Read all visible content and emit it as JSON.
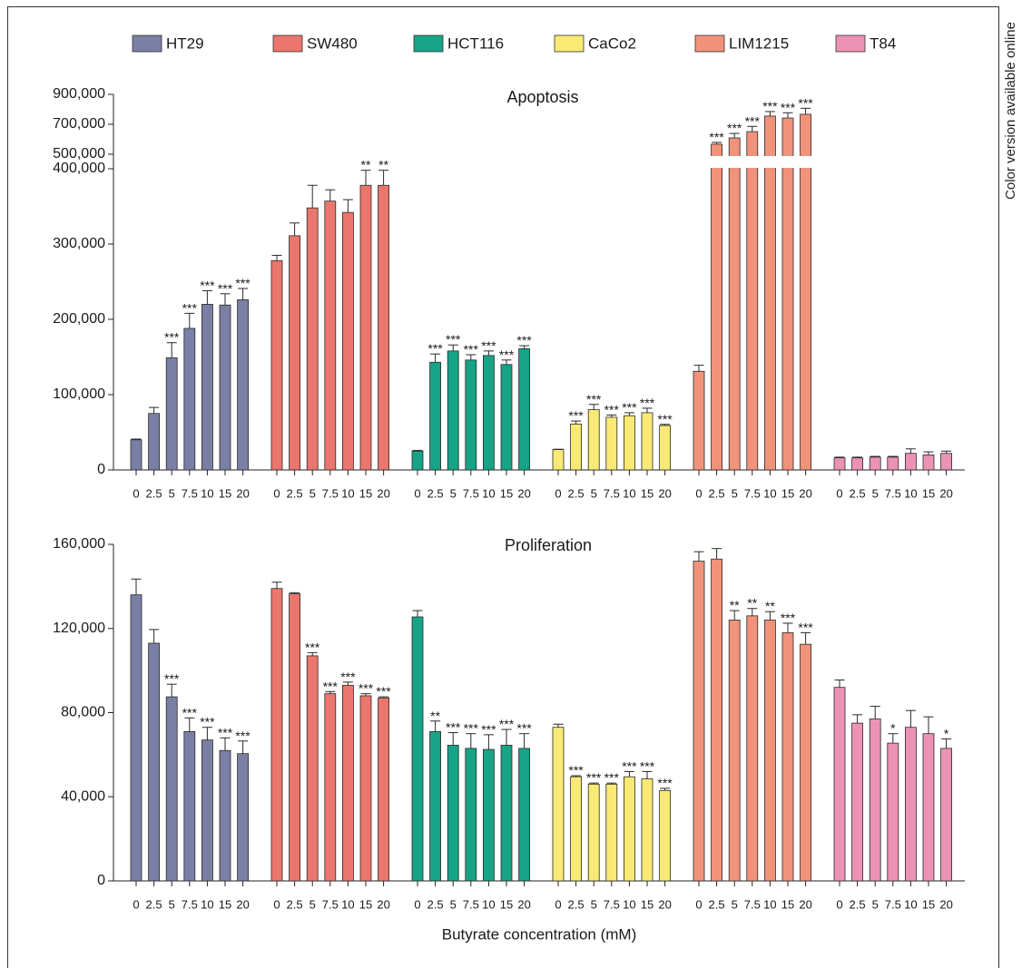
{
  "side_note": "Color version available online",
  "chart_data": [
    {
      "type": "bar",
      "title": "Apoptosis",
      "legend_position": "top",
      "grid": false,
      "categories": [
        "0",
        "2.5",
        "5",
        "7.5",
        "10",
        "15",
        "20"
      ],
      "ylim": [
        0,
        900000
      ],
      "axis_break": [
        400000,
        500000
      ],
      "yticks": [
        "0",
        "100,000",
        "200,000",
        "300,000",
        "400,000",
        "500,000",
        "700,000",
        "900,000"
      ],
      "series": [
        {
          "name": "HT29",
          "color": "#7a7fa5",
          "values": [
            40000,
            75000,
            149000,
            188000,
            220000,
            219000,
            226000
          ],
          "errors": [
            1000,
            8000,
            20000,
            20000,
            18000,
            15000,
            15000
          ],
          "significance": [
            "",
            "",
            "***",
            "***",
            "***",
            "***",
            "***"
          ]
        },
        {
          "name": "SW480",
          "color": "#ea766d",
          "values": [
            278000,
            311000,
            348000,
            357000,
            342000,
            378000,
            378000
          ],
          "errors": [
            7000,
            17000,
            30000,
            15000,
            17000,
            20000,
            20000
          ],
          "significance": [
            "",
            "",
            "",
            "",
            "",
            "**",
            "**"
          ]
        },
        {
          "name": "HCT116",
          "color": "#17a386",
          "values": [
            25000,
            143000,
            158000,
            146000,
            152000,
            140000,
            161000
          ],
          "errors": [
            1000,
            11000,
            8000,
            7000,
            6000,
            6000,
            4000
          ],
          "significance": [
            "",
            "***",
            "***",
            "***",
            "***",
            "***",
            "***"
          ]
        },
        {
          "name": "CaCo2",
          "color": "#f8ea74",
          "values": [
            27000,
            61000,
            80000,
            70000,
            72000,
            76000,
            59000
          ],
          "errors": [
            500,
            4000,
            7000,
            3000,
            4000,
            6000,
            1500
          ],
          "significance": [
            "",
            "***",
            "***",
            "***",
            "***",
            "***",
            "***"
          ]
        },
        {
          "name": "LIM1215",
          "color": "#f1927a",
          "values": [
            131000,
            567000,
            609000,
            651000,
            755000,
            742000,
            767000
          ],
          "errors": [
            8000,
            12000,
            30000,
            35000,
            30000,
            35000,
            40000
          ],
          "significance": [
            "",
            "***",
            "***",
            "***",
            "***",
            "***",
            "***"
          ]
        },
        {
          "name": "T84",
          "color": "#ec92b4",
          "values": [
            16000,
            16000,
            17000,
            17000,
            22000,
            20000,
            22000
          ],
          "errors": [
            1000,
            1000,
            1000,
            1000,
            6000,
            4000,
            3000
          ],
          "significance": [
            "",
            "",
            "",
            "",
            "",
            "",
            ""
          ]
        }
      ]
    },
    {
      "type": "bar",
      "title": "Proliferation",
      "xlabel": "Butyrate concentration (mM)",
      "grid": false,
      "categories": [
        "0",
        "2.5",
        "5",
        "7.5",
        "10",
        "15",
        "20"
      ],
      "ylim": [
        0,
        160000
      ],
      "yticks": [
        "0",
        "40,000",
        "80,000",
        "120,000",
        "160,000"
      ],
      "series": [
        {
          "name": "HT29",
          "color": "#7a7fa5",
          "values": [
            136000,
            113000,
            87500,
            71000,
            67000,
            62000,
            60500
          ],
          "errors": [
            7500,
            6500,
            6000,
            6500,
            6000,
            6000,
            6000
          ],
          "significance": [
            "",
            "",
            "***",
            "***",
            "***",
            "***",
            "***"
          ]
        },
        {
          "name": "SW480",
          "color": "#ea766d",
          "values": [
            139000,
            136500,
            107000,
            89000,
            93000,
            88000,
            87000
          ],
          "errors": [
            3000,
            500,
            1500,
            1000,
            1500,
            1000,
            500
          ],
          "significance": [
            "",
            "",
            "***",
            "***",
            "***",
            "***",
            "***"
          ]
        },
        {
          "name": "HCT116",
          "color": "#17a386",
          "values": [
            125500,
            71000,
            64500,
            63000,
            62500,
            64500,
            63000
          ],
          "errors": [
            3000,
            5000,
            6000,
            7000,
            7000,
            7500,
            7000
          ],
          "significance": [
            "",
            "**",
            "***",
            "***",
            "***",
            "***",
            "***"
          ]
        },
        {
          "name": "CaCo2",
          "color": "#f8ea74",
          "values": [
            73000,
            49500,
            46000,
            46000,
            49500,
            48500,
            43000
          ],
          "errors": [
            1500,
            500,
            500,
            500,
            2500,
            3500,
            1000
          ],
          "significance": [
            "",
            "***",
            "***",
            "***",
            "***",
            "***",
            "***"
          ]
        },
        {
          "name": "LIM1215",
          "color": "#f1927a",
          "values": [
            152000,
            153000,
            124000,
            126000,
            124000,
            118000,
            112500
          ],
          "errors": [
            4500,
            5000,
            4500,
            3500,
            4000,
            4500,
            5500
          ],
          "significance": [
            "",
            "",
            "**",
            "**",
            "**",
            "***",
            "***"
          ]
        },
        {
          "name": "T84",
          "color": "#ec92b4",
          "values": [
            92000,
            75000,
            77000,
            65500,
            73000,
            70000,
            63000
          ],
          "errors": [
            3500,
            4000,
            6000,
            4500,
            8000,
            8000,
            4500
          ],
          "significance": [
            "",
            "",
            "",
            "*",
            "",
            "",
            "*"
          ]
        }
      ]
    }
  ]
}
